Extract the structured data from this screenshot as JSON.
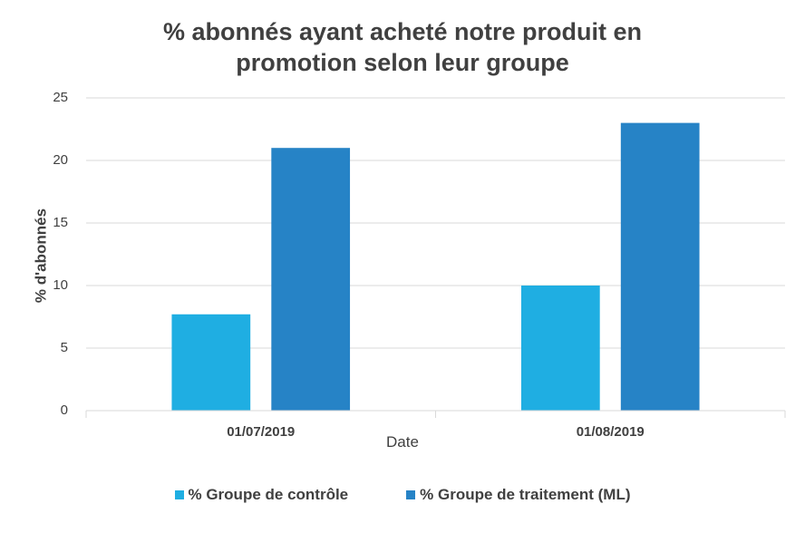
{
  "chart_data": {
    "type": "bar",
    "title": "% abonnés ayant acheté notre produit en\npromotion selon leur groupe",
    "xlabel": "Date",
    "ylabel": "% d'abonnés",
    "categories": [
      "01/07/2019",
      "01/08/2019"
    ],
    "ylim": [
      0,
      25
    ],
    "yticks": [
      0,
      5,
      10,
      15,
      20,
      25
    ],
    "grid": true,
    "legend_position": "bottom",
    "series": [
      {
        "name": "% Groupe de contrôle",
        "values": [
          7.7,
          10
        ],
        "color": "#1FAEE2"
      },
      {
        "name": "% Groupe de traitement (ML)",
        "values": [
          21,
          23
        ],
        "color": "#2683C6"
      }
    ]
  }
}
